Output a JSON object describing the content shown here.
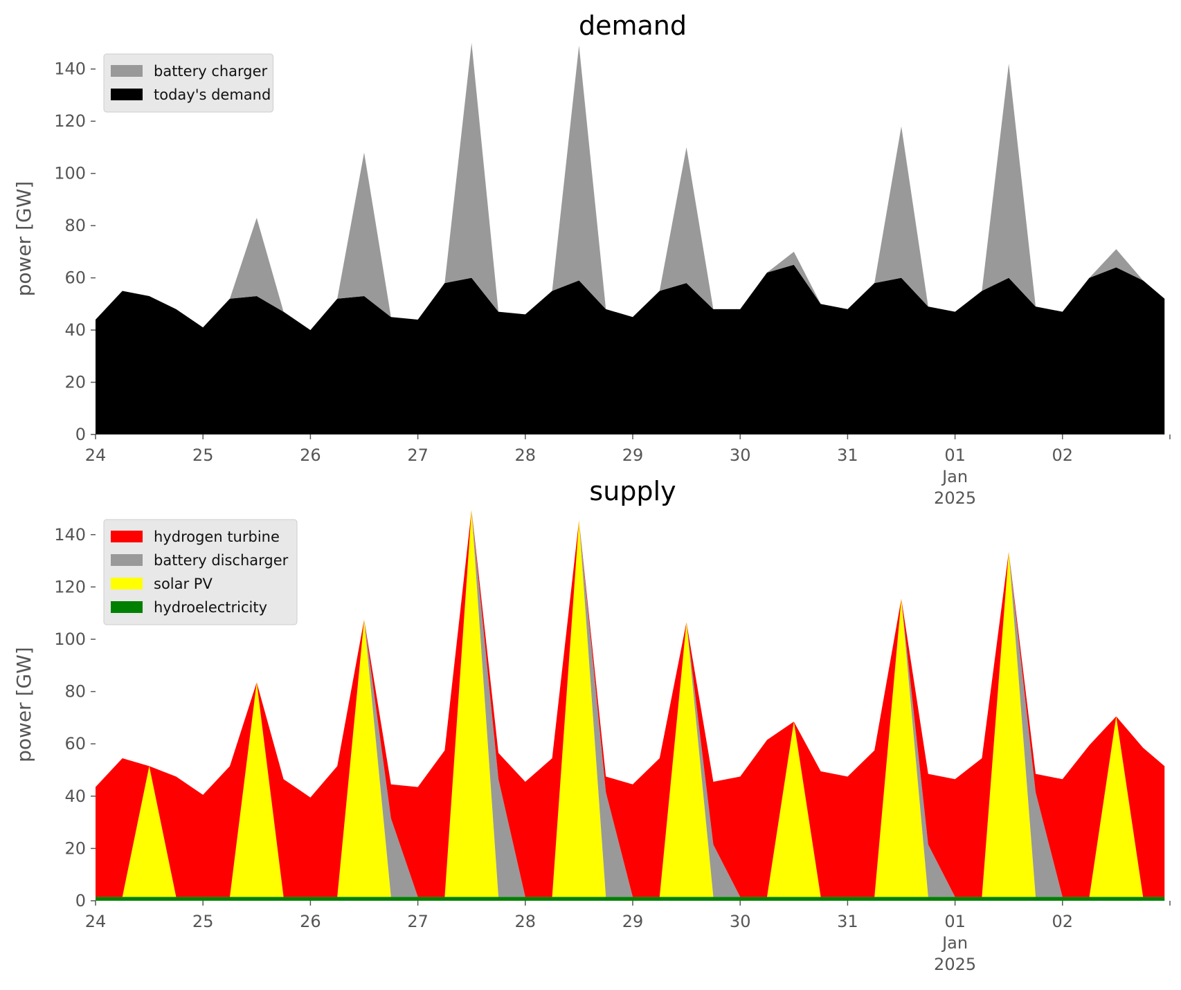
{
  "chart_data": [
    {
      "type": "area",
      "stacked": true,
      "title": "demand",
      "ylabel": "power [GW]",
      "xlabel": "",
      "ylim": [
        0,
        150
      ],
      "yticks": [
        0,
        20,
        40,
        60,
        80,
        100,
        120,
        140
      ],
      "xlim": [
        "2024-12-24",
        "2025-01-03"
      ],
      "x_tick_labels": [
        "24",
        "25",
        "26",
        "27",
        "28",
        "29",
        "30",
        "31",
        "01\nJan\n2025",
        "02"
      ],
      "grid": false,
      "legend_position": "top-left",
      "x_unit": "days from 2024-12-24 00:00",
      "x": [
        0,
        0.25,
        0.5,
        0.75,
        1,
        1.25,
        1.5,
        1.75,
        2,
        2.25,
        2.5,
        2.75,
        3,
        3.25,
        3.5,
        3.75,
        4,
        4.25,
        4.5,
        4.75,
        5,
        5.25,
        5.5,
        5.75,
        6,
        6.25,
        6.5,
        6.75,
        7,
        7.25,
        7.5,
        7.75,
        8,
        8.25,
        8.5,
        8.75,
        9,
        9.25,
        9.5,
        9.75,
        9.95
      ],
      "series": [
        {
          "name": "today's demand",
          "color": "#000000",
          "values": [
            44,
            55,
            53,
            48,
            41,
            52,
            53,
            47,
            40,
            52,
            53,
            45,
            44,
            58,
            60,
            47,
            46,
            55,
            59,
            48,
            45,
            55,
            58,
            48,
            48,
            62,
            65,
            50,
            48,
            58,
            60,
            49,
            47,
            55,
            60,
            49,
            47,
            60,
            64,
            59,
            52
          ]
        },
        {
          "name": "battery charger",
          "color": "#999999",
          "values": [
            0,
            0,
            0,
            0,
            0,
            0,
            30,
            0,
            0,
            0,
            55,
            0,
            0,
            0,
            90,
            0,
            0,
            0,
            90,
            0,
            0,
            0,
            52,
            0,
            0,
            0,
            5,
            0,
            0,
            0,
            58,
            0,
            0,
            0,
            82,
            0,
            0,
            0,
            7,
            0,
            0
          ]
        }
      ]
    },
    {
      "type": "area",
      "stacked": true,
      "title": "supply",
      "ylabel": "power [GW]",
      "xlabel": "",
      "ylim": [
        0,
        150
      ],
      "yticks": [
        0,
        20,
        40,
        60,
        80,
        100,
        120,
        140
      ],
      "xlim": [
        "2024-12-24",
        "2025-01-03"
      ],
      "x_tick_labels": [
        "24",
        "25",
        "26",
        "27",
        "28",
        "29",
        "30",
        "31",
        "01\nJan\n2025",
        "02"
      ],
      "grid": false,
      "legend_position": "top-left",
      "x_unit": "days from 2024-12-24 00:00",
      "x": [
        0,
        0.25,
        0.5,
        0.75,
        1,
        1.25,
        1.5,
        1.75,
        2,
        2.25,
        2.5,
        2.75,
        3,
        3.25,
        3.5,
        3.75,
        4,
        4.25,
        4.5,
        4.75,
        5,
        5.25,
        5.5,
        5.75,
        6,
        6.25,
        6.5,
        6.75,
        7,
        7.25,
        7.5,
        7.75,
        8,
        8.25,
        8.5,
        8.75,
        9,
        9.25,
        9.5,
        9.75,
        9.95
      ],
      "series": [
        {
          "name": "hydroelectricity",
          "color": "#008000",
          "values": [
            1.5,
            1.5,
            1.5,
            1.5,
            1.5,
            1.5,
            1.5,
            1.5,
            1.5,
            1.5,
            1.5,
            1.5,
            1.5,
            1.5,
            1.5,
            1.5,
            1.5,
            1.5,
            1.5,
            1.5,
            1.5,
            1.5,
            1.5,
            1.5,
            1.5,
            1.5,
            1.5,
            1.5,
            1.5,
            1.5,
            1.5,
            1.5,
            1.5,
            1.5,
            1.5,
            1.5,
            1.5,
            1.5,
            1.5,
            1.5,
            1.5
          ]
        },
        {
          "name": "solar PV",
          "color": "#ffff00",
          "values": [
            0,
            0,
            50,
            0,
            0,
            0,
            82,
            0,
            0,
            0,
            106,
            0,
            0,
            0,
            148,
            0,
            0,
            0,
            144,
            0,
            0,
            0,
            105,
            0,
            0,
            0,
            67,
            0,
            0,
            0,
            114,
            0,
            0,
            0,
            132,
            0,
            0,
            0,
            69,
            0,
            0
          ]
        },
        {
          "name": "battery discharger",
          "color": "#999999",
          "values": [
            0,
            0,
            0,
            0,
            0,
            0,
            0,
            0,
            0,
            0,
            0,
            30,
            0,
            0,
            0,
            45,
            0,
            0,
            0,
            40,
            0,
            0,
            0,
            20,
            0,
            0,
            0,
            0,
            0,
            0,
            0,
            20,
            0,
            0,
            0,
            40,
            0,
            0,
            0,
            0,
            0
          ]
        },
        {
          "name": "hydrogen turbine",
          "color": "#ff0000",
          "values": [
            42,
            53,
            0,
            46,
            39,
            50,
            0,
            45,
            38,
            50,
            0,
            13,
            42,
            56,
            0,
            10,
            44,
            53,
            0,
            6,
            43,
            53,
            0,
            24,
            46,
            60,
            0,
            48,
            46,
            56,
            0,
            27,
            45,
            53,
            0,
            7,
            45,
            58,
            0,
            57,
            50
          ]
        }
      ]
    }
  ]
}
